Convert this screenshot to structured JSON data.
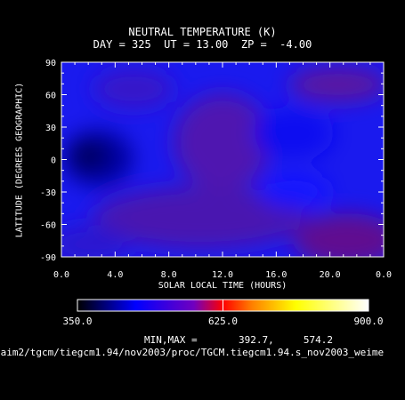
{
  "chart_data": {
    "type": "heatmap",
    "title": "NEUTRAL TEMPERATURE (K)",
    "subtitle": "DAY = 325  UT = 13.00  ZP =  -4.00",
    "xlabel": "SOLAR LOCAL TIME (HOURS)",
    "ylabel": "LATITUDE (DEGREES GEOGRAPHIC)",
    "xlim": [
      0,
      24
    ],
    "ylim": [
      -90,
      90
    ],
    "x_ticks": [
      "0.0",
      "4.0",
      "8.0",
      "12.0",
      "16.0",
      "20.0",
      "0.0"
    ],
    "y_ticks": [
      "90",
      "60",
      "30",
      "0",
      "-30",
      "-60",
      "-90"
    ],
    "colorbar": {
      "range": [
        350,
        900
      ],
      "tick_labels": [
        "350.0",
        "625.0",
        "900.0"
      ],
      "colors": [
        "#000000",
        "#0000ff",
        "#8000ff",
        "#ff0000",
        "#ffff00",
        "#ffffff"
      ]
    },
    "min_max_label": "MIN,MAX =",
    "min_value": "392.7,",
    "max_value": "574.2",
    "features": [
      {
        "x": 3.0,
        "y": 2,
        "value": 393
      },
      {
        "x": 19.5,
        "y": -63,
        "value": 574
      },
      {
        "x": 20.5,
        "y": 65,
        "value": 470
      },
      {
        "x": 11.0,
        "y": 40,
        "value": 455
      },
      {
        "x": 12.0,
        "y": -20,
        "value": 445
      }
    ]
  },
  "footer_path": "/aim2/tgcm/tiegcm1.94/nov2003/proc/TGCM.tiegcm1.94.s_nov2003_weime"
}
